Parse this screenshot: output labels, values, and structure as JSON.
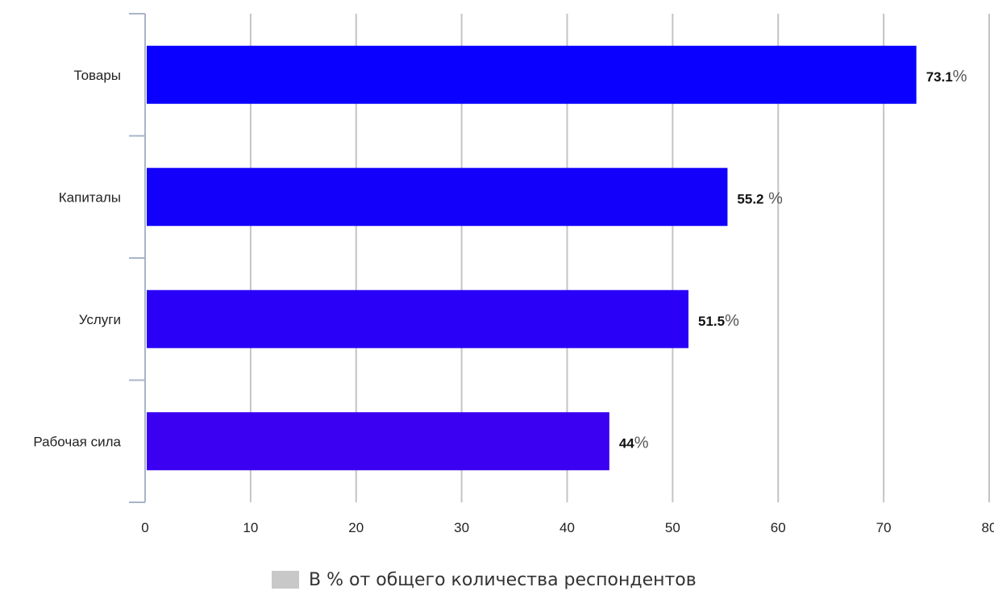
{
  "chart_data": {
    "type": "bar",
    "orientation": "horizontal",
    "categories": [
      "Товары",
      "Капиталы",
      "Услуги",
      "Рабочая сила"
    ],
    "values": [
      73.1,
      55.2,
      51.5,
      44
    ],
    "data_labels": [
      {
        "number": "73.1",
        "unit": "%"
      },
      {
        "number": "55.2",
        "unit": " %"
      },
      {
        "number": "51.5",
        "unit": "%"
      },
      {
        "number": "44",
        "unit": "%"
      }
    ],
    "bar_colors": [
      "#0a00ff",
      "#1200fa",
      "#2a00f6",
      "#3b00f2"
    ],
    "xlim": [
      0,
      80
    ],
    "xticks": [
      0,
      10,
      20,
      30,
      40,
      50,
      60,
      70,
      80
    ],
    "grid": true,
    "legend": {
      "position": "bottom-center",
      "label": "В % от общего количества респондентов",
      "color": "#c8c8c8"
    }
  }
}
